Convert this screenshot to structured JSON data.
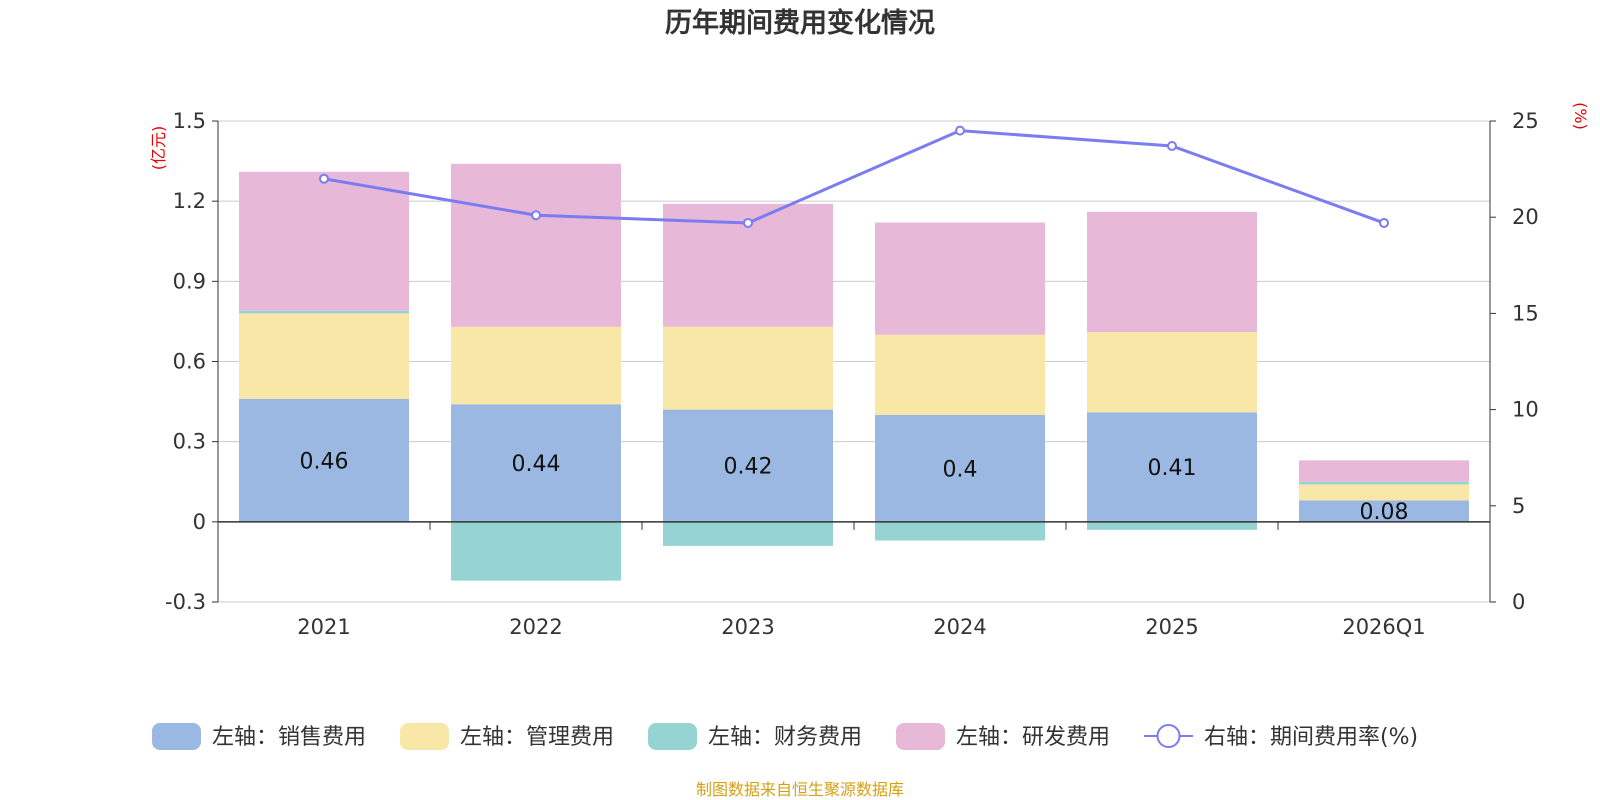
{
  "chart_data": {
    "type": "bar",
    "stacked": true,
    "title": "历年期间费用变化情况",
    "categories": [
      "2021",
      "2022",
      "2023",
      "2024",
      "2025",
      "2026Q1"
    ],
    "y_left": {
      "unit": "(亿元)",
      "ylim": [
        -0.3,
        1.5
      ],
      "ticks": [
        "-0.3",
        "0",
        "0.3",
        "0.6",
        "0.9",
        "1.2",
        "1.5"
      ]
    },
    "y_right": {
      "unit": "(%)",
      "ylim": [
        0,
        25
      ],
      "ticks": [
        "0",
        "5",
        "10",
        "15",
        "20",
        "25"
      ]
    },
    "series": [
      {
        "name": "左轴：销售费用",
        "color": "#9bb8e2",
        "type": "bar",
        "axis": "left",
        "values": [
          0.46,
          0.44,
          0.42,
          0.4,
          0.41,
          0.08
        ],
        "labels": [
          "0.46",
          "0.44",
          "0.42",
          "0.4",
          "0.41",
          "0.08"
        ]
      },
      {
        "name": "左轴：管理费用",
        "color": "#f8e7a7",
        "type": "bar",
        "axis": "left",
        "values": [
          0.32,
          0.29,
          0.31,
          0.3,
          0.3,
          0.06
        ]
      },
      {
        "name": "左轴：财务费用",
        "color": "#96d4d4",
        "type": "bar",
        "axis": "left",
        "values": [
          0.01,
          -0.22,
          -0.09,
          -0.07,
          -0.03,
          0.01
        ]
      },
      {
        "name": "左轴：研发费用",
        "color": "#e8b8d9",
        "type": "bar",
        "axis": "left",
        "values": [
          0.52,
          0.61,
          0.46,
          0.42,
          0.45,
          0.08
        ]
      },
      {
        "name": "右轴：期间费用率(%)",
        "color": "#7b7cf0",
        "type": "line",
        "axis": "right",
        "values": [
          22.0,
          20.1,
          19.7,
          24.5,
          23.7,
          19.7
        ]
      }
    ],
    "legend_position": "bottom",
    "source": "制图数据来自恒生聚源数据库"
  }
}
